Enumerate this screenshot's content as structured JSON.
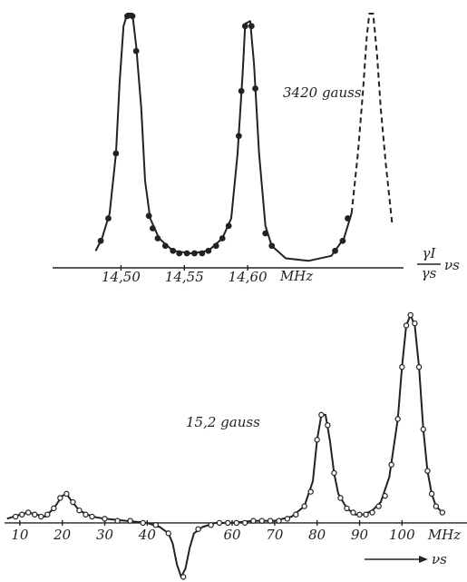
{
  "chart_data": [
    {
      "type": "line",
      "annotation": "3420 gauss",
      "x_unit": "MHz",
      "x_label_numerator": "γI",
      "x_label_denominator": "γs",
      "x_label_factor": "νs",
      "xlim": [
        14.446,
        14.723
      ],
      "ylim": [
        0,
        100
      ],
      "xticks": [
        {
          "value": 14.5,
          "label": "14,50"
        },
        {
          "value": 14.55,
          "label": "14,55"
        },
        {
          "value": 14.6,
          "label": "14,60"
        }
      ],
      "series": [
        {
          "kind": "line",
          "color": "#222",
          "dashed": false,
          "x": [
            14.48,
            14.485,
            14.491,
            14.496,
            14.499,
            14.502,
            14.505,
            14.509,
            14.512,
            14.516,
            14.519,
            14.523,
            14.53,
            14.541,
            14.555,
            14.569,
            14.58,
            14.587,
            14.592,
            14.596,
            14.598,
            14.602,
            14.605,
            14.609,
            14.614,
            14.619,
            14.63,
            14.648,
            14.666,
            14.676,
            14.682
          ],
          "values": [
            5,
            10,
            20,
            44,
            73,
            95,
            100,
            100,
            87,
            62,
            33,
            18,
            10,
            5,
            4,
            5,
            10,
            18,
            44,
            76,
            96,
            97,
            80,
            44,
            15,
            7,
            2,
            1,
            3,
            10,
            20
          ]
        },
        {
          "kind": "line",
          "color": "#222",
          "dashed": true,
          "x": [
            14.682,
            14.687,
            14.691,
            14.694,
            14.696,
            14.699,
            14.702,
            14.705,
            14.709,
            14.714
          ],
          "values": [
            20,
            44,
            69,
            91,
            100,
            100,
            84,
            62,
            40,
            16
          ]
        },
        {
          "kind": "scatter",
          "color": "#222",
          "marker": "filled",
          "x": [
            14.484,
            14.49,
            14.496,
            14.505,
            14.509,
            14.512,
            14.522,
            14.525,
            14.529,
            14.535,
            14.541,
            14.546,
            14.552,
            14.558,
            14.564,
            14.569,
            14.575,
            14.58,
            14.585,
            14.593,
            14.595,
            14.598,
            14.603,
            14.606,
            14.614,
            14.619,
            14.669,
            14.675,
            14.679
          ],
          "values": [
            9,
            18,
            44,
            99,
            99,
            85,
            19,
            14,
            10,
            7,
            5,
            4,
            4,
            4,
            4,
            5,
            7,
            10,
            15,
            51,
            69,
            95,
            95,
            70,
            12,
            7,
            5,
            9,
            18
          ]
        }
      ]
    },
    {
      "type": "line",
      "annotation": "15,2 gauss",
      "x_unit": "MHz",
      "x_label": "νs",
      "xlim": [
        6.4,
        115.3
      ],
      "ylim": [
        -28,
        100
      ],
      "xticks": [
        10,
        20,
        30,
        40,
        60,
        70,
        80,
        90,
        100
      ],
      "series": [
        {
          "kind": "line",
          "color": "#222",
          "dashed": false,
          "x": [
            7,
            10,
            12,
            14,
            16,
            18,
            20,
            21,
            22,
            24,
            27,
            30,
            35,
            40,
            43,
            45,
            46,
            47,
            48,
            49,
            50,
            51,
            53,
            56,
            60,
            65,
            70,
            74,
            77,
            79,
            80,
            81,
            82,
            83,
            84,
            85,
            87,
            89,
            91,
            93,
            95,
            97,
            99,
            100,
            101,
            102,
            103,
            104,
            105,
            106,
            107,
            108,
            109
          ],
          "values": [
            2,
            4,
            5,
            4,
            3,
            7,
            13,
            14,
            11,
            6,
            3,
            2,
            1,
            0,
            -2,
            -5,
            -10,
            -20,
            -26,
            -22,
            -12,
            -5,
            -2,
            0,
            0,
            1,
            1,
            3,
            8,
            20,
            40,
            52,
            52,
            40,
            24,
            14,
            7,
            4,
            4,
            6,
            10,
            22,
            50,
            75,
            95,
            100,
            95,
            75,
            45,
            25,
            14,
            8,
            6
          ]
        },
        {
          "kind": "scatter",
          "color": "#222",
          "marker": "open",
          "x": [
            9,
            10.5,
            12,
            13.5,
            15,
            16.5,
            18,
            19.5,
            21,
            22.5,
            24,
            25.5,
            27,
            30,
            33,
            36,
            39,
            42,
            45,
            48.5,
            52,
            55,
            57,
            59,
            61,
            63,
            65,
            67,
            69,
            71,
            73,
            75,
            77,
            78.5,
            80,
            81,
            82.5,
            84,
            85.5,
            87,
            88.5,
            90,
            91.5,
            93,
            94.5,
            96,
            97.5,
            99,
            100,
            101,
            102,
            103,
            104,
            105,
            106,
            107,
            108,
            109.5
          ],
          "values": [
            3,
            4,
            5,
            4,
            3,
            4,
            7,
            12,
            14,
            10,
            6,
            4,
            3,
            2,
            1,
            1,
            0,
            -1,
            -5,
            -26,
            -3,
            -1,
            0,
            0,
            0,
            0,
            1,
            1,
            1,
            1,
            2,
            4,
            8,
            15,
            40,
            52,
            47,
            24,
            12,
            7,
            5,
            4,
            4,
            5,
            8,
            13,
            28,
            50,
            75,
            95,
            100,
            96,
            75,
            45,
            25,
            14,
            8,
            5
          ]
        }
      ]
    }
  ]
}
